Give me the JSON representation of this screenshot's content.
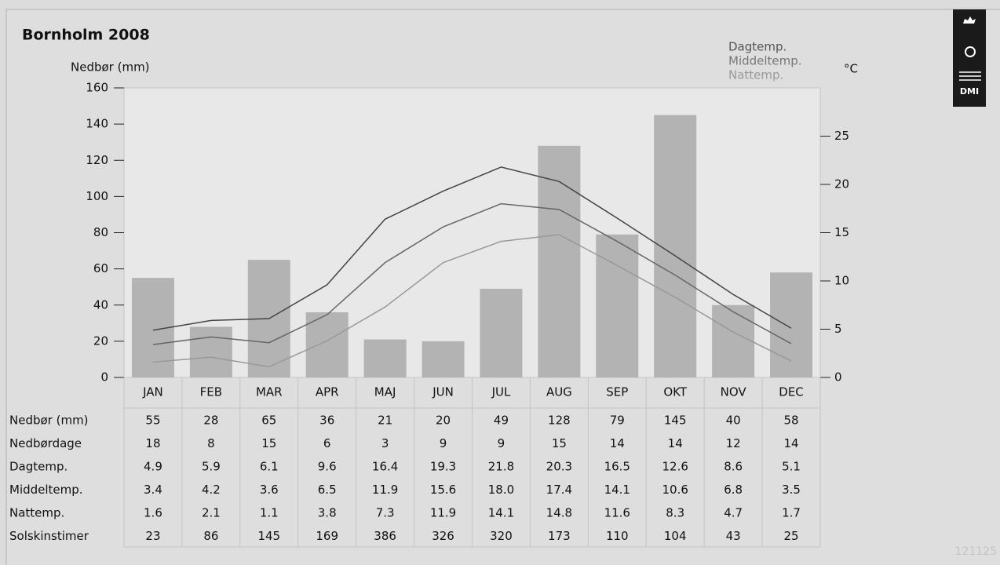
{
  "chart_data": {
    "type": "bar",
    "title": "Bornholm 2008",
    "y_label": "Nedbør (mm)",
    "y2_label": "°C",
    "categories": [
      "JAN",
      "FEB",
      "MAR",
      "APR",
      "MAJ",
      "JUN",
      "JUL",
      "AUG",
      "SEP",
      "OKT",
      "NOV",
      "DEC"
    ],
    "ylim": [
      0,
      160
    ],
    "yticks": [
      0,
      20,
      40,
      60,
      80,
      100,
      120,
      140,
      160
    ],
    "y2lim": [
      0,
      30
    ],
    "y2ticks": [
      0,
      5,
      10,
      15,
      20,
      25
    ],
    "series": [
      {
        "name": "Nedbør (mm)",
        "type": "bar",
        "color": "#b3b3b3",
        "values": [
          55,
          28,
          65,
          36,
          21,
          20,
          49,
          128,
          79,
          145,
          40,
          58
        ]
      },
      {
        "name": "Dagtemp.",
        "type": "line",
        "axis": "y2",
        "color": "#444444",
        "values": [
          4.9,
          5.9,
          6.1,
          9.6,
          16.4,
          19.3,
          21.8,
          20.3,
          16.5,
          12.6,
          8.6,
          5.1
        ]
      },
      {
        "name": "Middeltemp.",
        "type": "line",
        "axis": "y2",
        "color": "#666666",
        "values": [
          3.4,
          4.2,
          3.6,
          6.5,
          11.9,
          15.6,
          18.0,
          17.4,
          14.1,
          10.6,
          6.8,
          3.5
        ],
        "value_labels": [
          "3.4",
          "4.2",
          "3.6",
          "6.5",
          "11.9",
          "15.6",
          "18.0",
          "17.4",
          "14.1",
          "10.6",
          "6.8",
          "3.5"
        ]
      },
      {
        "name": "Nattemp.",
        "type": "line",
        "axis": "y2",
        "color": "#999999",
        "values": [
          1.6,
          2.1,
          1.1,
          3.8,
          7.3,
          11.9,
          14.1,
          14.8,
          11.6,
          8.3,
          4.7,
          1.7
        ]
      }
    ],
    "extra_rows": [
      {
        "name": "Nedbørdage",
        "values": [
          18,
          8,
          15,
          6,
          3,
          9,
          9,
          15,
          14,
          14,
          12,
          14
        ]
      },
      {
        "name": "Solskinstimer",
        "values": [
          23,
          86,
          145,
          169,
          386,
          326,
          320,
          173,
          110,
          104,
          43,
          25
        ]
      }
    ],
    "code": "121125"
  }
}
